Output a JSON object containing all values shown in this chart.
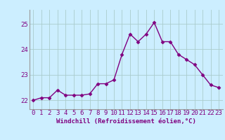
{
  "x": [
    0,
    1,
    2,
    3,
    4,
    5,
    6,
    7,
    8,
    9,
    10,
    11,
    12,
    13,
    14,
    15,
    16,
    17,
    18,
    19,
    20,
    21,
    22,
    23
  ],
  "y": [
    22.0,
    22.1,
    22.1,
    22.4,
    22.2,
    22.2,
    22.2,
    22.25,
    22.65,
    22.65,
    22.8,
    23.8,
    24.6,
    24.3,
    24.6,
    25.05,
    24.3,
    24.3,
    23.8,
    23.6,
    23.4,
    23.0,
    22.6,
    22.5
  ],
  "line_color": "#800080",
  "marker": "D",
  "marker_size": 2.5,
  "bg_color": "#cceeff",
  "grid_color": "#aacccc",
  "xlabel": "Windchill (Refroidissement éolien,°C)",
  "ylim": [
    21.65,
    25.55
  ],
  "xlim": [
    -0.5,
    23.5
  ],
  "yticks": [
    22,
    23,
    24,
    25
  ],
  "xtick_labels": [
    "0",
    "1",
    "2",
    "3",
    "4",
    "5",
    "6",
    "7",
    "8",
    "9",
    "10",
    "11",
    "12",
    "13",
    "14",
    "15",
    "16",
    "17",
    "18",
    "19",
    "20",
    "21",
    "22",
    "23"
  ],
  "xlabel_fontsize": 6.5,
  "tick_fontsize": 6.5,
  "line_width": 1.0
}
